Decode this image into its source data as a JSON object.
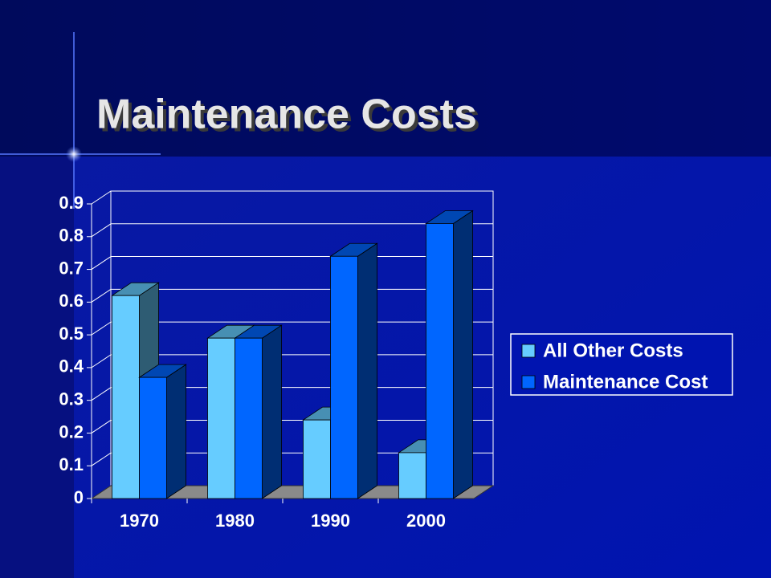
{
  "chart_data": {
    "type": "bar3d",
    "title": "Maintenance Costs",
    "categories": [
      "1970",
      "1980",
      "1990",
      "2000"
    ],
    "series": [
      {
        "name": "All Other Costs",
        "color": "#66ccff",
        "values": [
          0.62,
          0.49,
          0.24,
          0.14
        ]
      },
      {
        "name": "Maintenance Cost",
        "color": "#0066ff",
        "values": [
          0.37,
          0.49,
          0.74,
          0.84
        ]
      }
    ],
    "ylim": [
      0,
      0.9
    ],
    "yticks": [
      0,
      0.1,
      0.2,
      0.3,
      0.4,
      0.5,
      0.6,
      0.7,
      0.8,
      0.9
    ],
    "grid": true,
    "legend": "right"
  }
}
